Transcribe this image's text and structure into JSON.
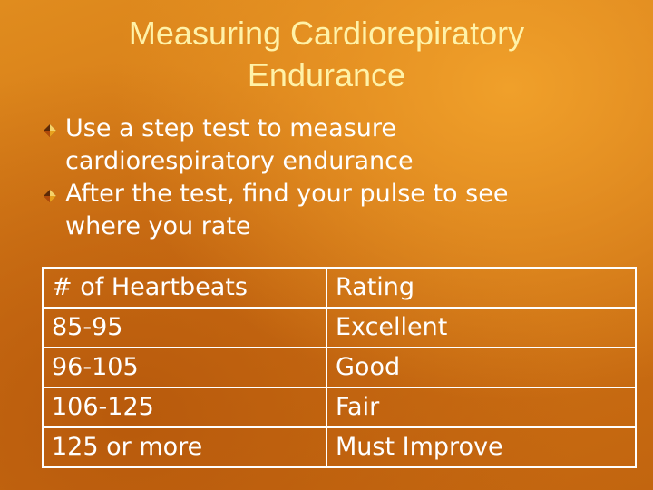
{
  "slide": {
    "title_line1": "Measuring Cardiorepiratory",
    "title_line2": "Endurance",
    "bullets": [
      {
        "line1": "Use a step test to measure",
        "line2": "cardiorespiratory endurance"
      },
      {
        "line1": "After the test, find your pulse to see",
        "line2": "where you rate"
      }
    ],
    "bullet_icon": "diamond-bullet-icon",
    "table": {
      "headers": [
        "# of Heartbeats",
        "Rating"
      ],
      "rows": [
        [
          "85-95",
          "Excellent"
        ],
        [
          "96-105",
          "Good"
        ],
        [
          "106-125",
          "Fair"
        ],
        [
          "125 or more",
          "Must Improve"
        ]
      ]
    },
    "colors": {
      "title": "#fff2a8",
      "text": "#ffffff",
      "background": "#d27516"
    }
  }
}
